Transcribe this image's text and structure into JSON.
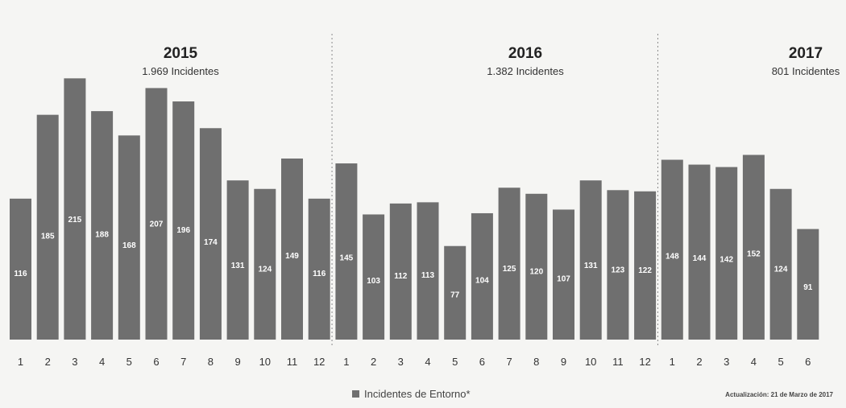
{
  "chart_data": {
    "type": "bar",
    "categories": [
      "1",
      "2",
      "3",
      "4",
      "5",
      "6",
      "7",
      "8",
      "9",
      "10",
      "11",
      "12",
      "1",
      "2",
      "3",
      "4",
      "5",
      "6",
      "7",
      "8",
      "9",
      "10",
      "11",
      "12",
      "1",
      "2",
      "3",
      "4",
      "5",
      "6"
    ],
    "series": [
      {
        "name": "Incidentes de Entorno*",
        "values": [
          116,
          185,
          215,
          188,
          168,
          207,
          196,
          174,
          131,
          124,
          149,
          116,
          145,
          103,
          112,
          113,
          77,
          104,
          125,
          120,
          107,
          131,
          123,
          122,
          148,
          144,
          142,
          152,
          124,
          91
        ]
      }
    ],
    "ylim": [
      0,
      220
    ],
    "grid": false,
    "legend_position": "bottom",
    "bar_color": "#6f6f6f",
    "groups": [
      {
        "year": "2015",
        "total": "1.969 Incidentes",
        "start": 0,
        "count": 12
      },
      {
        "year": "2016",
        "total": "1.382 Incidentes",
        "start": 12,
        "count": 12
      },
      {
        "year": "2017",
        "total": "801 Incidentes",
        "start": 24,
        "count": 6
      }
    ]
  },
  "legend": {
    "label": "Incidentes de Entorno*"
  },
  "footer": {
    "update_note": "Actualización: 21 de Marzo de 2017"
  }
}
